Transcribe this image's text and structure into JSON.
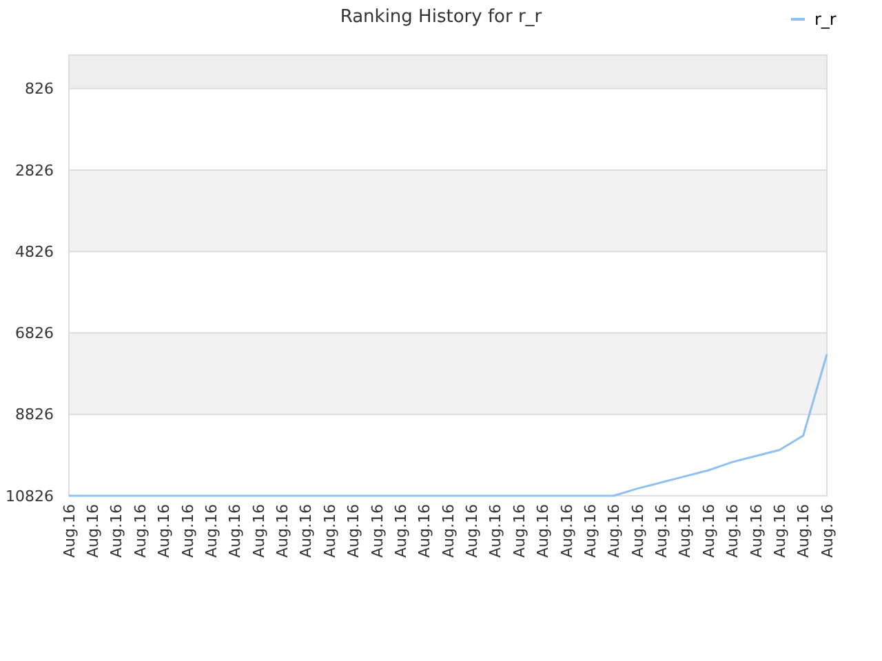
{
  "chart_data": {
    "type": "line",
    "title": "Ranking History for r_r",
    "categories": [
      "Aug.16",
      "Aug.16",
      "Aug.16",
      "Aug.16",
      "Aug.16",
      "Aug.16",
      "Aug.16",
      "Aug.16",
      "Aug.16",
      "Aug.16",
      "Aug.16",
      "Aug.16",
      "Aug.16",
      "Aug.16",
      "Aug.16",
      "Aug.16",
      "Aug.16",
      "Aug.16",
      "Aug.16",
      "Aug.16",
      "Aug.16",
      "Aug.16",
      "Aug.16",
      "Aug.16",
      "Aug.16",
      "Aug.16",
      "Aug.16",
      "Aug.16",
      "Aug.16",
      "Aug.16",
      "Aug.16",
      "Aug.16",
      "Aug.16"
    ],
    "ylim": [
      10826,
      1
    ],
    "yticks": [
      826,
      2826,
      4826,
      6826,
      8826,
      10826
    ],
    "series": [
      {
        "name": "r_r",
        "color": "#90c0f0",
        "values": [
          10826,
          10826,
          10826,
          10826,
          10826,
          10826,
          10826,
          10826,
          10826,
          10826,
          10826,
          10826,
          10826,
          10826,
          10826,
          10826,
          10826,
          10826,
          10826,
          10826,
          10826,
          10826,
          10826,
          10826,
          10650,
          10500,
          10350,
          10200,
          10000,
          9850,
          9700,
          9350,
          7350
        ]
      }
    ],
    "bands": [
      {
        "axis": "y",
        "from": 1,
        "to": 826,
        "color": "#eeeeee"
      },
      {
        "axis": "y",
        "from": 2826,
        "to": 4826,
        "color": "#f2f2f2"
      },
      {
        "axis": "y",
        "from": 6826,
        "to": 8826,
        "color": "#f2f2f2"
      }
    ],
    "grid": "y",
    "legend": "top right",
    "marker": "none",
    "line_style": "solid"
  }
}
